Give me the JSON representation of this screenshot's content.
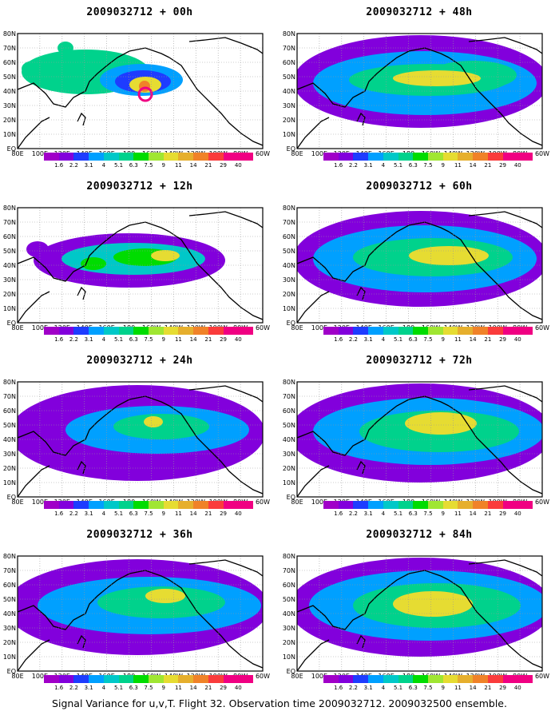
{
  "footer": "Signal Variance for u,v,T. Flight 32. Observation time 2009032712. 2009032500 ensemble.",
  "axes": {
    "lon_labels": [
      "80E",
      "100E",
      "120E",
      "140E",
      "160E",
      "180",
      "160W",
      "140W",
      "120W",
      "100W",
      "80W",
      "60W"
    ],
    "lat_labels": [
      "80N",
      "70N",
      "60N",
      "50N",
      "40N",
      "30N",
      "20N",
      "10N",
      "EQ"
    ]
  },
  "colorbar": {
    "labels": [
      "1.6",
      "2.2",
      "3.1",
      "4",
      "5.1",
      "6.3",
      "7.5",
      "9",
      "11",
      "14",
      "21",
      "29",
      "40"
    ],
    "colors": [
      "#a000c8",
      "#8200dc",
      "#1e3cff",
      "#00a0ff",
      "#00c8c8",
      "#00d28c",
      "#00dc00",
      "#a0e632",
      "#e6dc32",
      "#e6af2d",
      "#f08228",
      "#fa3c3c",
      "#f00082"
    ]
  },
  "panels": [
    {
      "title": "2009032712 + 00h"
    },
    {
      "title": "2009032712 + 48h"
    },
    {
      "title": "2009032712 + 12h"
    },
    {
      "title": "2009032712 + 60h"
    },
    {
      "title": "2009032712 + 24h"
    },
    {
      "title": "2009032712 + 72h"
    },
    {
      "title": "2009032712 + 36h"
    },
    {
      "title": "2009032712 + 84h"
    }
  ]
}
